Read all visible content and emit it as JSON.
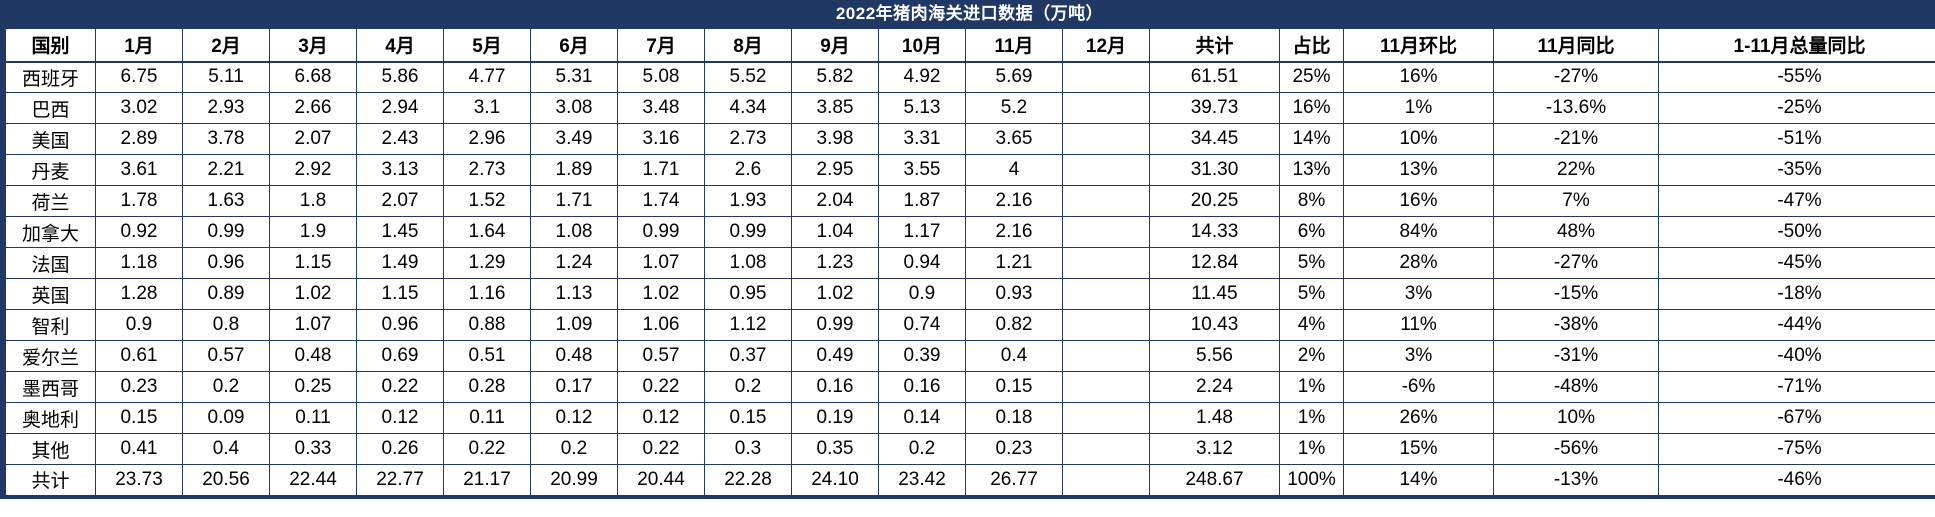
{
  "title": "2022年猪肉海关进口数据（万吨）",
  "colors": {
    "header_background": "#1F3864",
    "title_text": "#FFFFFF",
    "cell_text": "#000000",
    "grid_border": "#1F3864"
  },
  "chart_data": {
    "type": "table",
    "title": "2022年猪肉海关进口数据（万吨）",
    "columns": [
      "国别",
      "1月",
      "2月",
      "3月",
      "4月",
      "5月",
      "6月",
      "7月",
      "8月",
      "9月",
      "10月",
      "11月",
      "12月",
      "共计",
      "占比",
      "11月环比",
      "11月同比",
      "1-11月总量同比"
    ],
    "rows": [
      [
        "西班牙",
        "6.75",
        "5.11",
        "6.68",
        "5.86",
        "4.77",
        "5.31",
        "5.08",
        "5.52",
        "5.82",
        "4.92",
        "5.69",
        "",
        "61.51",
        "25%",
        "16%",
        "-27%",
        "-55%"
      ],
      [
        "巴西",
        "3.02",
        "2.93",
        "2.66",
        "2.94",
        "3.1",
        "3.08",
        "3.48",
        "4.34",
        "3.85",
        "5.13",
        "5.2",
        "",
        "39.73",
        "16%",
        "1%",
        "-13.6%",
        "-25%"
      ],
      [
        "美国",
        "2.89",
        "3.78",
        "2.07",
        "2.43",
        "2.96",
        "3.49",
        "3.16",
        "2.73",
        "3.98",
        "3.31",
        "3.65",
        "",
        "34.45",
        "14%",
        "10%",
        "-21%",
        "-51%"
      ],
      [
        "丹麦",
        "3.61",
        "2.21",
        "2.92",
        "3.13",
        "2.73",
        "1.89",
        "1.71",
        "2.6",
        "2.95",
        "3.55",
        "4",
        "",
        "31.30",
        "13%",
        "13%",
        "22%",
        "-35%"
      ],
      [
        "荷兰",
        "1.78",
        "1.63",
        "1.8",
        "2.07",
        "1.52",
        "1.71",
        "1.74",
        "1.93",
        "2.04",
        "1.87",
        "2.16",
        "",
        "20.25",
        "8%",
        "16%",
        "7%",
        "-47%"
      ],
      [
        "加拿大",
        "0.92",
        "0.99",
        "1.9",
        "1.45",
        "1.64",
        "1.08",
        "0.99",
        "0.99",
        "1.04",
        "1.17",
        "2.16",
        "",
        "14.33",
        "6%",
        "84%",
        "48%",
        "-50%"
      ],
      [
        "法国",
        "1.18",
        "0.96",
        "1.15",
        "1.49",
        "1.29",
        "1.24",
        "1.07",
        "1.08",
        "1.23",
        "0.94",
        "1.21",
        "",
        "12.84",
        "5%",
        "28%",
        "-27%",
        "-45%"
      ],
      [
        "英国",
        "1.28",
        "0.89",
        "1.02",
        "1.15",
        "1.16",
        "1.13",
        "1.02",
        "0.95",
        "1.02",
        "0.9",
        "0.93",
        "",
        "11.45",
        "5%",
        "3%",
        "-15%",
        "-18%"
      ],
      [
        "智利",
        "0.9",
        "0.8",
        "1.07",
        "0.96",
        "0.88",
        "1.09",
        "1.06",
        "1.12",
        "0.99",
        "0.74",
        "0.82",
        "",
        "10.43",
        "4%",
        "11%",
        "-38%",
        "-44%"
      ],
      [
        "爱尔兰",
        "0.61",
        "0.57",
        "0.48",
        "0.69",
        "0.51",
        "0.48",
        "0.57",
        "0.37",
        "0.49",
        "0.39",
        "0.4",
        "",
        "5.56",
        "2%",
        "3%",
        "-31%",
        "-40%"
      ],
      [
        "墨西哥",
        "0.23",
        "0.2",
        "0.25",
        "0.22",
        "0.28",
        "0.17",
        "0.22",
        "0.2",
        "0.16",
        "0.16",
        "0.15",
        "",
        "2.24",
        "1%",
        "-6%",
        "-48%",
        "-71%"
      ],
      [
        "奥地利",
        "0.15",
        "0.09",
        "0.11",
        "0.12",
        "0.11",
        "0.12",
        "0.12",
        "0.15",
        "0.19",
        "0.14",
        "0.18",
        "",
        "1.48",
        "1%",
        "26%",
        "10%",
        "-67%"
      ],
      [
        "其他",
        "0.41",
        "0.4",
        "0.33",
        "0.26",
        "0.22",
        "0.2",
        "0.22",
        "0.3",
        "0.35",
        "0.2",
        "0.23",
        "",
        "3.12",
        "1%",
        "15%",
        "-56%",
        "-75%"
      ],
      [
        "共计",
        "23.73",
        "20.56",
        "22.44",
        "22.77",
        "21.17",
        "20.99",
        "20.44",
        "22.28",
        "24.10",
        "23.42",
        "26.77",
        "",
        "248.67",
        "100%",
        "14%",
        "-13%",
        "-46%"
      ]
    ],
    "total_row_label": "共计",
    "layout_hints": {
      "grid": "on",
      "all_cells_centered": true,
      "december_column_empty": true
    }
  }
}
